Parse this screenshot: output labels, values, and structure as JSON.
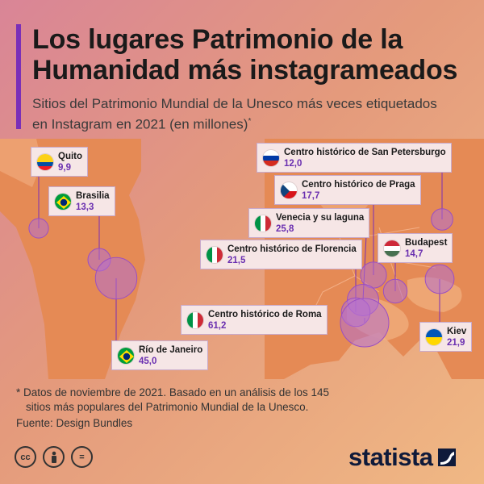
{
  "title": "Los lugares Patrimonio de la Humanidad más instagrameados",
  "subtitle": "Sitios del Patrimonio Mundial de la Unesco más veces etiquetados en Instagram en 2021 (en millones)",
  "subtitle_mark": "*",
  "chart_data": {
    "type": "bubble-map",
    "unit": "millones",
    "points": [
      {
        "place": "Quito",
        "value": 9.9,
        "value_label": "9,9",
        "flag": "ecuador"
      },
      {
        "place": "Brasilia",
        "value": 13.3,
        "value_label": "13,3",
        "flag": "brazil"
      },
      {
        "place": "Río de Janeiro",
        "value": 45.0,
        "value_label": "45,0",
        "flag": "brazil"
      },
      {
        "place": "Centro histórico de San Petersburgo",
        "value": 12.0,
        "value_label": "12,0",
        "flag": "russia"
      },
      {
        "place": "Centro histórico de Praga",
        "value": 17.7,
        "value_label": "17,7",
        "flag": "czechia"
      },
      {
        "place": "Venecia y su laguna",
        "value": 25.8,
        "value_label": "25,8",
        "flag": "italy"
      },
      {
        "place": "Centro histórico de Florencia",
        "value": 21.5,
        "value_label": "21,5",
        "flag": "italy"
      },
      {
        "place": "Budapest",
        "value": 14.7,
        "value_label": "14,7",
        "flag": "hungary"
      },
      {
        "place": "Centro histórico de Roma",
        "value": 61.2,
        "value_label": "61,2",
        "flag": "italy"
      },
      {
        "place": "Kiev",
        "value": 21.9,
        "value_label": "21,9",
        "flag": "ukraine"
      }
    ]
  },
  "colors": {
    "accent": "#7a2fb8",
    "bubble": "#b56fd0",
    "value_text": "#6a2fb0",
    "map_land": "#e58a55",
    "logo": "#0f1a3a"
  },
  "footnote_line1": "* Datos de noviembre de 2021. Basado en un análisis de los 145",
  "footnote_line2": "sitios más populares del Patrimonio Mundial de la Unesco.",
  "source": "Fuente: Design Bundles",
  "license_icons": [
    "cc-icon",
    "person-attribution-icon",
    "equals-no-derivatives-icon"
  ],
  "license_glyphs": [
    "cc",
    "=",
    "="
  ],
  "brand": "statista"
}
